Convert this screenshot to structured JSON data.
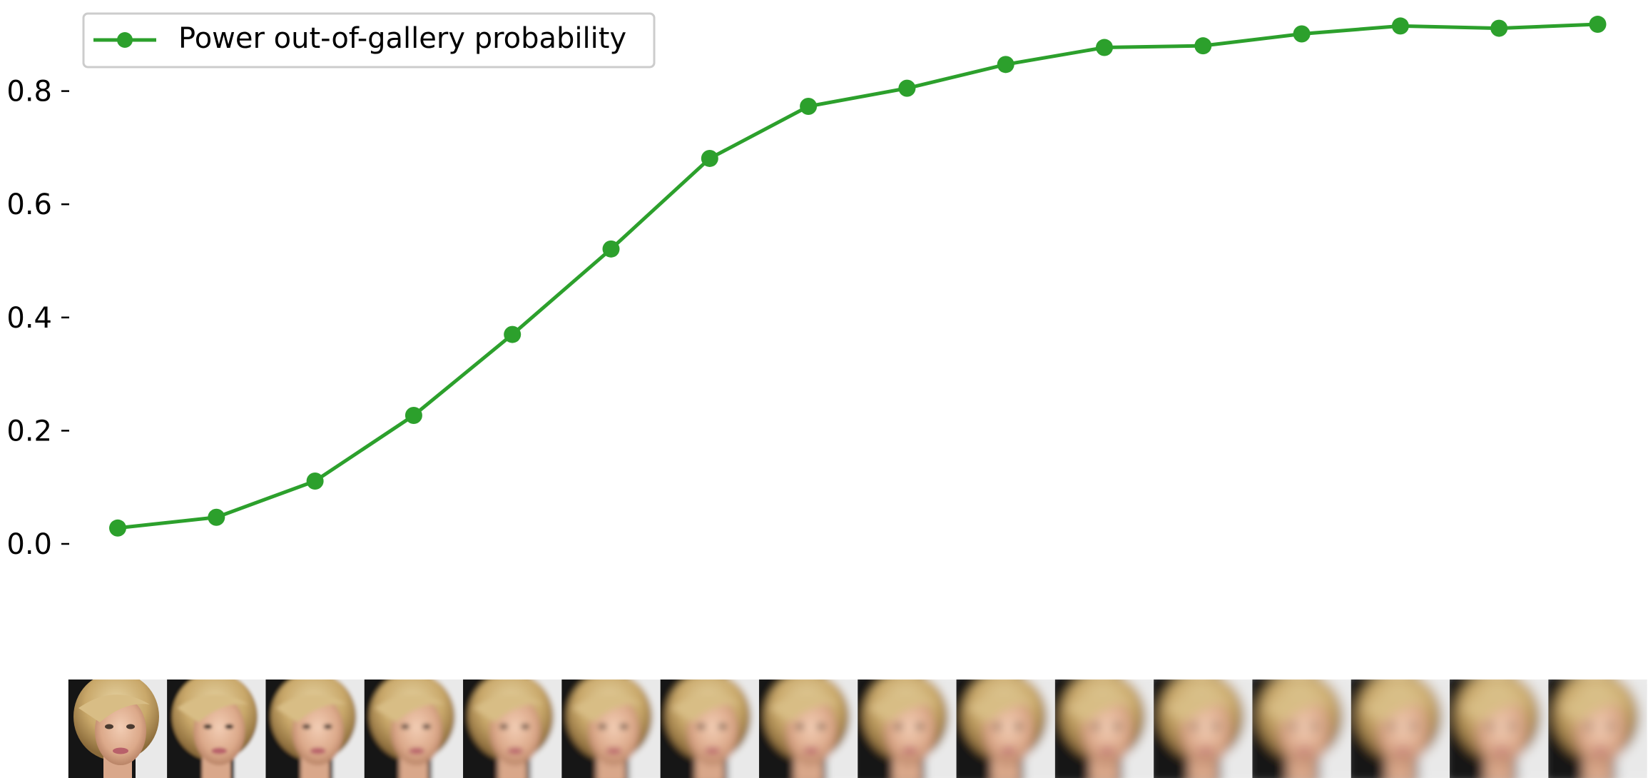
{
  "chart_data": {
    "type": "line",
    "title": "",
    "xlabel": "",
    "ylabel": "",
    "x": [
      0,
      1,
      2,
      3,
      4,
      5,
      6,
      7,
      8,
      9,
      10,
      11,
      12,
      13,
      14,
      15
    ],
    "series": [
      {
        "name": "Power out-of-gallery probability",
        "color": "#2ca02c",
        "marker": "circle",
        "values": [
          0.028,
          0.047,
          0.111,
          0.227,
          0.37,
          0.521,
          0.681,
          0.773,
          0.805,
          0.847,
          0.877,
          0.88,
          0.901,
          0.915,
          0.911,
          0.918
        ]
      }
    ],
    "yticks": [
      0.0,
      0.2,
      0.4,
      0.6,
      0.8
    ],
    "ytick_labels": [
      "0.0",
      "0.2",
      "0.4",
      "0.6",
      "0.8"
    ],
    "ylim": [
      -0.06,
      0.95
    ],
    "xlim": [
      -0.5,
      15.5
    ],
    "grid": false,
    "legend_position": "top-left",
    "x_axis_images": {
      "count": 16,
      "description": "face thumbnails, progressively blurred from left to right"
    }
  }
}
